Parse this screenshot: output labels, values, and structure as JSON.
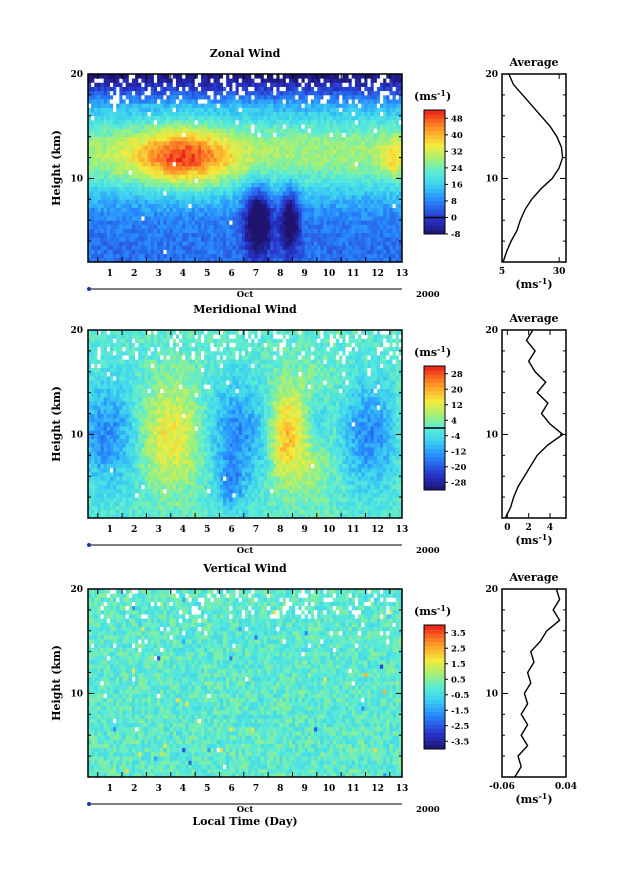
{
  "chart_data": [
    {
      "type": "heatmap",
      "title": "Zonal Wind",
      "ylabel": "Height (km)",
      "ylim": [
        2,
        20
      ],
      "yticks": [
        "20",
        "10"
      ],
      "xlim": [
        0.6,
        13.5
      ],
      "xticks": [
        "1",
        "2",
        "3",
        "4",
        "5",
        "6",
        "7",
        "8",
        "9",
        "10",
        "11",
        "12",
        "13"
      ],
      "month_label": "Oct",
      "year_label": "2000",
      "colorbar": {
        "unit": "(ms",
        "unit_sup": "-1",
        "unit_close": ")",
        "ticks": [
          "48",
          "40",
          "32",
          "24",
          "16",
          "8",
          "0",
          "-8"
        ],
        "range": [
          -8,
          52
        ],
        "contour_level": "0"
      },
      "profile": {
        "title": "Average",
        "ylim": [
          2,
          20
        ],
        "yticks": [
          "20",
          "10"
        ],
        "xlim": [
          5,
          33
        ],
        "xticks": [
          {
            "value": 5,
            "label": "5"
          },
          {
            "value": 30,
            "label": "30"
          }
        ],
        "xlabel": "(ms",
        "xlabel_sup": "-1",
        "xlabel_close": ")",
        "points": [
          [
            5.5,
            2
          ],
          [
            7,
            3
          ],
          [
            9,
            4
          ],
          [
            11.5,
            5
          ],
          [
            13,
            6
          ],
          [
            15,
            7
          ],
          [
            18,
            8
          ],
          [
            22,
            9
          ],
          [
            27,
            10
          ],
          [
            30,
            11
          ],
          [
            31.5,
            12
          ],
          [
            31,
            13
          ],
          [
            29,
            14
          ],
          [
            26,
            15
          ],
          [
            22,
            16
          ],
          [
            18,
            17
          ],
          [
            14,
            18
          ],
          [
            10,
            19
          ],
          [
            8,
            20
          ]
        ]
      }
    },
    {
      "type": "heatmap",
      "title": "Meridional Wind",
      "ylabel": "Height (km)",
      "ylim": [
        2,
        20
      ],
      "yticks": [
        "20",
        "10"
      ],
      "xlim": [
        0.6,
        13.5
      ],
      "xticks": [
        "1",
        "2",
        "3",
        "4",
        "5",
        "6",
        "7",
        "8",
        "9",
        "10",
        "11",
        "12",
        "13"
      ],
      "month_label": "Oct",
      "year_label": "2000",
      "colorbar": {
        "unit": "(ms",
        "unit_sup": "-1",
        "unit_close": ")",
        "ticks": [
          "28",
          "20",
          "12",
          "4",
          "-4",
          "-12",
          "-20",
          "-28"
        ],
        "range": [
          -32,
          32
        ],
        "contour_level": "0"
      },
      "profile": {
        "title": "Average",
        "ylim": [
          2,
          20
        ],
        "yticks": [
          "20",
          "10"
        ],
        "xlim": [
          -0.5,
          5.5
        ],
        "xticks": [
          {
            "value": 0,
            "label": "0"
          },
          {
            "value": 2,
            "label": "2"
          },
          {
            "value": 4,
            "label": "4"
          }
        ],
        "xlabel": "(ms",
        "xlabel_sup": "-1",
        "xlabel_close": ")",
        "points": [
          [
            -0.2,
            2
          ],
          [
            0.3,
            3
          ],
          [
            0.6,
            4
          ],
          [
            1,
            5
          ],
          [
            1.6,
            6
          ],
          [
            2.2,
            7
          ],
          [
            2.8,
            8
          ],
          [
            3.8,
            9
          ],
          [
            5.2,
            10
          ],
          [
            4,
            11
          ],
          [
            3.2,
            12
          ],
          [
            3.8,
            13
          ],
          [
            2.8,
            14
          ],
          [
            3.6,
            15
          ],
          [
            2.6,
            16
          ],
          [
            2,
            17
          ],
          [
            2.6,
            18
          ],
          [
            1.8,
            19
          ],
          [
            2.4,
            20
          ]
        ]
      }
    },
    {
      "type": "heatmap",
      "title": "Vertical Wind",
      "ylabel": "Height (km)",
      "xlabel": "Local Time (Day)",
      "ylim": [
        2,
        20
      ],
      "yticks": [
        "20",
        "10"
      ],
      "xlim": [
        0.6,
        13.5
      ],
      "xticks": [
        "1",
        "2",
        "3",
        "4",
        "5",
        "6",
        "7",
        "8",
        "9",
        "10",
        "11",
        "12",
        "13"
      ],
      "month_label": "Oct",
      "year_label": "2000",
      "colorbar": {
        "unit": "(ms",
        "unit_sup": "-1",
        "unit_close": ")",
        "ticks": [
          "3.5",
          "2.5",
          "1.5",
          "0.5",
          "-0.5",
          "-1.5",
          "-2.5",
          "-3.5"
        ],
        "range": [
          -4,
          4
        ]
      },
      "profile": {
        "title": "Average",
        "ylim": [
          2,
          20
        ],
        "yticks": [
          "20",
          "10"
        ],
        "xlim": [
          -0.06,
          0.04
        ],
        "xticks": [
          {
            "value": -0.06,
            "label": "-0.06"
          },
          {
            "value": 0.04,
            "label": "0.04"
          }
        ],
        "xlabel": "(ms",
        "xlabel_sup": "-1",
        "xlabel_close": ")",
        "points": [
          [
            -0.04,
            2
          ],
          [
            -0.03,
            3
          ],
          [
            -0.035,
            4
          ],
          [
            -0.02,
            5
          ],
          [
            -0.03,
            6
          ],
          [
            -0.02,
            7
          ],
          [
            -0.03,
            8
          ],
          [
            -0.02,
            9
          ],
          [
            -0.025,
            10
          ],
          [
            -0.015,
            11
          ],
          [
            -0.02,
            12
          ],
          [
            -0.01,
            13
          ],
          [
            -0.015,
            14
          ],
          [
            0.0,
            15
          ],
          [
            0.01,
            16
          ],
          [
            0.03,
            17
          ],
          [
            0.02,
            18
          ],
          [
            0.03,
            19
          ],
          [
            0.025,
            20
          ]
        ]
      }
    }
  ]
}
